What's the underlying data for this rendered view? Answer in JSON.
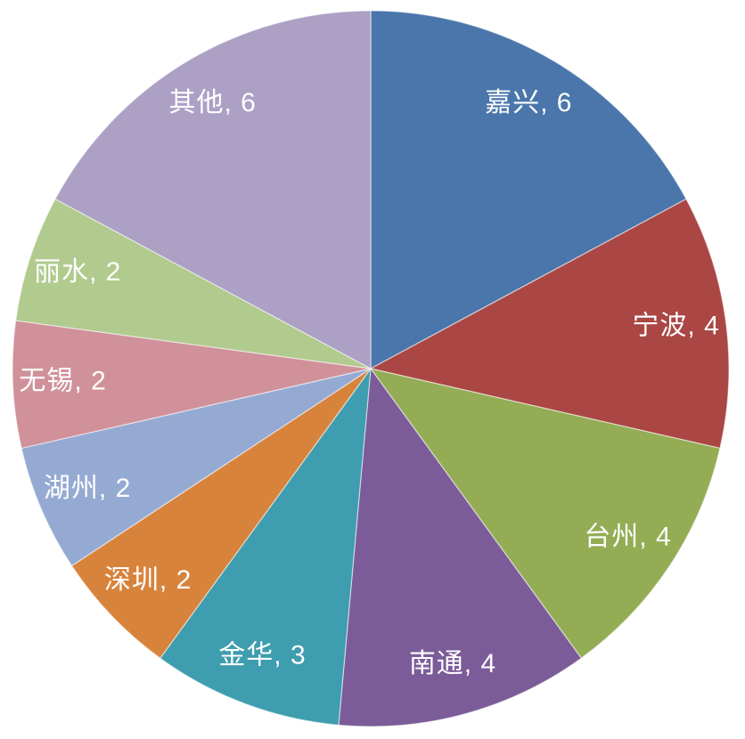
{
  "chart_data": {
    "type": "pie",
    "title": "",
    "legend_position": "none",
    "grid": false,
    "start_angle_deg": 0,
    "direction": "clockwise",
    "total": 35,
    "label_format": "{name}, {value}",
    "label_color": "#ffffff",
    "background_color": "#ffffff",
    "slices": [
      {
        "name": "嘉兴",
        "value": 6,
        "color": "#4b76ab",
        "label": "嘉兴, 6"
      },
      {
        "name": "宁波",
        "value": 4,
        "color": "#aa4744",
        "label": "宁波, 4"
      },
      {
        "name": "台州",
        "value": 4,
        "color": "#94ad55",
        "label": "台州, 4"
      },
      {
        "name": "南通",
        "value": 4,
        "color": "#7b5c99",
        "label": "南通, 4"
      },
      {
        "name": "金华",
        "value": 3,
        "color": "#3e9dae",
        "label": "金华, 3"
      },
      {
        "name": "深圳",
        "value": 2,
        "color": "#d8833c",
        "label": "深圳, 2"
      },
      {
        "name": "湖州",
        "value": 2,
        "color": "#95aad2",
        "label": "湖州, 2"
      },
      {
        "name": "无锡",
        "value": 2,
        "color": "#d0919b",
        "label": "无锡, 2"
      },
      {
        "name": "丽水",
        "value": 2,
        "color": "#b1ca8e",
        "label": "丽水, 2"
      },
      {
        "name": "其他",
        "value": 6,
        "color": "#aca0c5",
        "label": "其他, 6"
      }
    ]
  }
}
